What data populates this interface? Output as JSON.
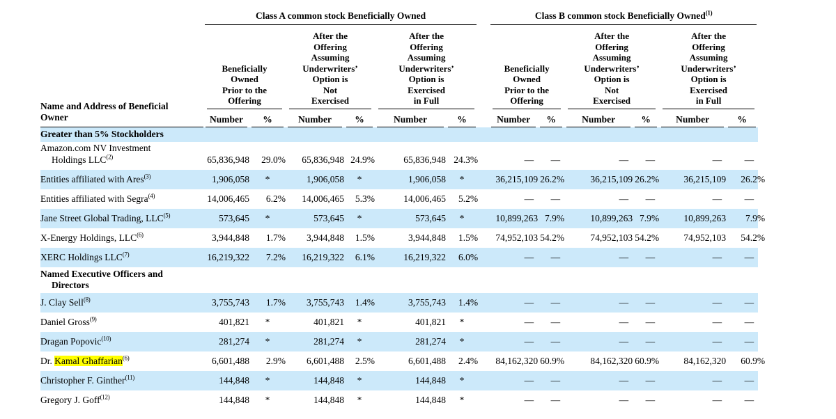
{
  "table": {
    "title_class_a": "Class A common stock Beneficially Owned",
    "title_class_b": "Class B common stock Beneficially Owned",
    "title_class_b_sup": "(1)",
    "name_col_header": "Name and Address of Beneficial\nOwner",
    "group_headers": [
      "Beneficially\nOwned\nPrior to the\nOffering",
      "After the\nOffering\nAssuming\nUnderwriters’\nOption is\nNot\nExercised",
      "After the\nOffering\nAssuming\nUnderwriters’\nOption is\nExercised\nin Full"
    ],
    "col_number": "Number",
    "col_percent": "%",
    "stripe_color": "#cce9fa",
    "highlight_color": "#ffff00",
    "rows": [
      {
        "type": "section",
        "label": "Greater than 5% Stockholders"
      },
      {
        "type": "entity",
        "name": "Amazon.com NV Investment",
        "name2": "Holdings LLC",
        "sup": "(2)",
        "values": [
          "65,836,948",
          "29.0%",
          "65,836,948",
          "24.9%",
          "65,836,948",
          "24.3%",
          "—",
          "—",
          "—",
          "—",
          "—",
          "—"
        ]
      },
      {
        "type": "entity",
        "name": "Entities affiliated with Ares",
        "sup": "(3)",
        "values": [
          "1,906,058",
          "*",
          "1,906,058",
          "*",
          "1,906,058",
          "*",
          "36,215,109",
          "26.2%",
          "36,215,109",
          "26.2%",
          "36,215,109",
          "26.2%"
        ]
      },
      {
        "type": "entity",
        "name": "Entities affiliated with Segra",
        "sup": "(4)",
        "values": [
          "14,006,465",
          "6.2%",
          "14,006,465",
          "5.3%",
          "14,006,465",
          "5.2%",
          "—",
          "—",
          "—",
          "—",
          "—",
          "—"
        ]
      },
      {
        "type": "entity",
        "name": "Jane Street Global Trading, LLC",
        "sup": "(5)",
        "values": [
          "573,645",
          "*",
          "573,645",
          "*",
          "573,645",
          "*",
          "10,899,263",
          "7.9%",
          "10,899,263",
          "7.9%",
          "10,899,263",
          "7.9%"
        ]
      },
      {
        "type": "entity",
        "name": "X-Energy Holdings, LLC",
        "sup": "(6)",
        "values": [
          "3,944,848",
          "1.7%",
          "3,944,848",
          "1.5%",
          "3,944,848",
          "1.5%",
          "74,952,103",
          "54.2%",
          "74,952,103",
          "54.2%",
          "74,952,103",
          "54.2%"
        ]
      },
      {
        "type": "entity",
        "name": "XERC Holdings LLC",
        "sup": "(7)",
        "values": [
          "16,219,322",
          "7.2%",
          "16,219,322",
          "6.1%",
          "16,219,322",
          "6.0%",
          "—",
          "—",
          "—",
          "—",
          "—",
          "—"
        ]
      },
      {
        "type": "section",
        "label": "Named Executive Officers and",
        "label2": "Directors"
      },
      {
        "type": "entity",
        "name": "J. Clay Sell",
        "sup": "(8)",
        "values": [
          "3,755,743",
          "1.7%",
          "3,755,743",
          "1.4%",
          "3,755,743",
          "1.4%",
          "—",
          "—",
          "—",
          "—",
          "—",
          "—"
        ]
      },
      {
        "type": "entity",
        "name": "Daniel Gross",
        "sup": "(9)",
        "values": [
          "401,821",
          "*",
          "401,821",
          "*",
          "401,821",
          "*",
          "—",
          "—",
          "—",
          "—",
          "—",
          "—"
        ]
      },
      {
        "type": "entity",
        "name": "Dragan Popovic",
        "sup": "(10)",
        "values": [
          "281,274",
          "*",
          "281,274",
          "*",
          "281,274",
          "*",
          "—",
          "—",
          "—",
          "—",
          "—",
          "—"
        ]
      },
      {
        "type": "entity",
        "name": "Dr. ",
        "highlight": "Kamal Ghaffarian",
        "sup": "(6)",
        "values": [
          "6,601,488",
          "2.9%",
          "6,601,488",
          "2.5%",
          "6,601,488",
          "2.4%",
          "84,162,320",
          "60.9%",
          "84,162,320",
          "60.9%",
          "84,162,320",
          "60.9%"
        ]
      },
      {
        "type": "entity",
        "name": "Christopher F. Ginther",
        "sup": "(11)",
        "values": [
          "144,848",
          "*",
          "144,848",
          "*",
          "144,848",
          "*",
          "—",
          "—",
          "—",
          "—",
          "—",
          "—"
        ]
      },
      {
        "type": "entity",
        "name": "Gregory J. Goff",
        "sup": "(12)",
        "values": [
          "144,848",
          "*",
          "144,848",
          "*",
          "144,848",
          "*",
          "—",
          "—",
          "—",
          "—",
          "—",
          "—"
        ]
      }
    ]
  }
}
